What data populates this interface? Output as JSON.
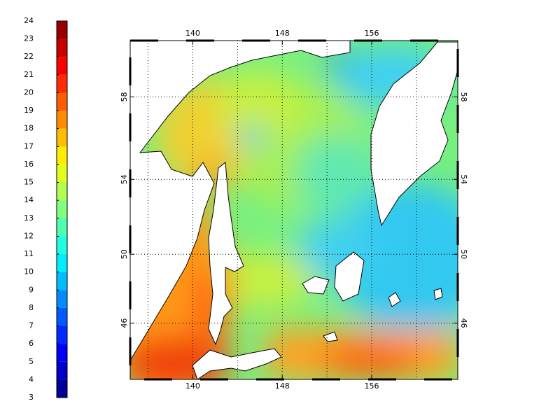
{
  "colorbar": {
    "ticks": [
      3,
      4,
      5,
      6,
      7,
      8,
      9,
      10,
      11,
      12,
      13,
      14,
      15,
      16,
      17,
      18,
      19,
      20,
      21,
      22,
      23,
      24
    ]
  },
  "map": {
    "lon_range": [
      134.4,
      163.7
    ],
    "lat_range": [
      42.5,
      60.5
    ],
    "lon_ticks": [
      140,
      148,
      156
    ],
    "lat_ticks": [
      58,
      54,
      50,
      46
    ]
  }
}
